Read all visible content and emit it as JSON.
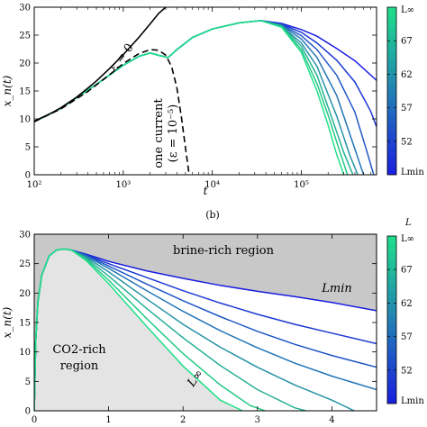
{
  "figure": {
    "panel_b_label": "(b)"
  },
  "chart_data": [
    {
      "type": "line",
      "panel": "top",
      "title": "",
      "xlabel": "t",
      "ylabel": "x_n(t)",
      "xscale": "log",
      "xlim": [
        100,
        700000
      ],
      "ylim": [
        0,
        30
      ],
      "xticks": [
        100,
        1000,
        10000,
        100000
      ],
      "xtick_labels": [
        "10²",
        "10³",
        "10⁴",
        "10⁵"
      ],
      "yticks": [
        0,
        5,
        10,
        15,
        20,
        25,
        30
      ],
      "annotations": {
        "eps0": "ε = 0",
        "one_current_1": "one current",
        "one_current_2": "(ε = 10⁻⁵)"
      },
      "reference_curves": [
        {
          "name": "ε = 0",
          "style": "solid-black",
          "x": [
            100,
            150,
            200,
            300,
            400,
            500,
            700,
            1000,
            1500,
            2000,
            2500,
            3000
          ],
          "y": [
            9.6,
            10.9,
            12.0,
            13.9,
            15.5,
            16.8,
            19.0,
            21.5,
            24.6,
            27.0,
            28.9,
            30.0
          ]
        },
        {
          "name": "one current (ε = 10⁻⁵)",
          "style": "dashed-black",
          "x": [
            100,
            200,
            400,
            700,
            1000,
            1500,
            2000,
            2500,
            3000,
            3500,
            4000,
            4500,
            5000,
            5500
          ],
          "y": [
            9.5,
            11.8,
            14.9,
            17.9,
            19.9,
            21.7,
            22.4,
            22.3,
            21.4,
            19.3,
            15.6,
            10.3,
            4.8,
            0
          ]
        }
      ],
      "series": [
        {
          "color": "#1a1ee0",
          "x": [
            100,
            200,
            500,
            1000,
            1500,
            2000,
            2600,
            3200,
            4000,
            6000,
            10000,
            20000,
            35000,
            60000,
            100000,
            150000,
            250000,
            400000,
            700000
          ],
          "y": [
            9.5,
            11.9,
            16.2,
            19.6,
            21.2,
            21.8,
            21.3,
            21.0,
            22.4,
            24.6,
            26.1,
            27.2,
            27.6,
            27.1,
            26.0,
            24.8,
            22.6,
            20.4,
            16.9
          ]
        },
        {
          "color": "#1c38d2",
          "x": [
            100,
            200,
            500,
            1000,
            1500,
            2000,
            2600,
            3200,
            4000,
            6000,
            10000,
            20000,
            35000,
            60000,
            100000,
            150000,
            250000,
            400000,
            600000,
            700000
          ],
          "y": [
            9.5,
            11.9,
            16.2,
            19.6,
            21.2,
            21.8,
            21.3,
            21.0,
            22.4,
            24.6,
            26.1,
            27.2,
            27.6,
            27.0,
            25.5,
            23.6,
            20.5,
            16.6,
            11.4,
            8.6
          ]
        },
        {
          "color": "#1f56c5",
          "x": [
            100,
            200,
            500,
            1000,
            1500,
            2000,
            2600,
            3200,
            4000,
            6000,
            10000,
            20000,
            35000,
            60000,
            100000,
            150000,
            250000,
            400000,
            550000,
            650000
          ],
          "y": [
            9.5,
            11.9,
            16.2,
            19.6,
            21.2,
            21.8,
            21.3,
            21.0,
            22.4,
            24.6,
            26.1,
            27.2,
            27.6,
            26.9,
            24.9,
            22.4,
            17.8,
            11.2,
            4.0,
            0
          ]
        },
        {
          "color": "#2274b6",
          "x": [
            100,
            200,
            500,
            1000,
            1500,
            2000,
            2600,
            3200,
            4000,
            6000,
            10000,
            20000,
            35000,
            60000,
            100000,
            150000,
            250000,
            350000,
            500000
          ],
          "y": [
            9.5,
            11.9,
            16.2,
            19.6,
            21.2,
            21.8,
            21.3,
            21.0,
            22.4,
            24.6,
            26.1,
            27.2,
            27.6,
            26.8,
            24.3,
            21.0,
            14.2,
            7.3,
            0
          ]
        },
        {
          "color": "#2592a6",
          "x": [
            100,
            200,
            500,
            1000,
            1500,
            2000,
            2600,
            3200,
            4000,
            6000,
            10000,
            20000,
            35000,
            60000,
            100000,
            150000,
            250000,
            350000,
            430000
          ],
          "y": [
            9.5,
            11.9,
            16.2,
            19.6,
            21.2,
            21.8,
            21.3,
            21.0,
            22.4,
            24.6,
            26.1,
            27.2,
            27.6,
            26.7,
            23.6,
            19.4,
            10.5,
            3.5,
            0
          ]
        },
        {
          "color": "#27b096",
          "x": [
            100,
            200,
            500,
            1000,
            1500,
            2000,
            2600,
            3200,
            4000,
            6000,
            10000,
            20000,
            35000,
            60000,
            100000,
            150000,
            220000,
            300000,
            380000
          ],
          "y": [
            9.5,
            11.9,
            16.2,
            19.6,
            21.2,
            21.8,
            21.3,
            21.0,
            22.4,
            24.6,
            26.1,
            27.2,
            27.6,
            26.6,
            23.0,
            17.8,
            10.2,
            4.0,
            0
          ]
        },
        {
          "color": "#25c885",
          "x": [
            100,
            200,
            500,
            1000,
            1500,
            2000,
            2600,
            3200,
            4000,
            6000,
            10000,
            20000,
            35000,
            60000,
            100000,
            150000,
            200000,
            260000,
            330000
          ],
          "y": [
            9.5,
            11.9,
            16.2,
            19.6,
            21.2,
            21.8,
            21.3,
            21.0,
            22.4,
            24.6,
            26.1,
            27.2,
            27.6,
            26.5,
            22.4,
            16.3,
            10.7,
            5.0,
            0
          ]
        },
        {
          "color": "#1fe08a",
          "x": [
            100,
            200,
            500,
            1000,
            1500,
            2000,
            2600,
            3200,
            4000,
            6000,
            10000,
            20000,
            35000,
            60000,
            100000,
            150000,
            200000,
            250000,
            300000
          ],
          "y": [
            9.5,
            11.9,
            16.2,
            19.6,
            21.2,
            21.8,
            21.3,
            21.0,
            22.4,
            24.6,
            26.1,
            27.2,
            27.6,
            26.4,
            21.9,
            15.0,
            8.9,
            3.6,
            0
          ]
        }
      ],
      "colorbar": {
        "top_label": "L∞",
        "bottom_label": "Lmin",
        "ticks": [
          67,
          62,
          57,
          52
        ]
      }
    },
    {
      "type": "area",
      "panel": "bottom",
      "title": "",
      "xlabel": "",
      "ylabel": "x_n(t)",
      "xlim": [
        0,
        4.6
      ],
      "ylim": [
        0,
        30
      ],
      "xticks": [
        0,
        1,
        2,
        3,
        4
      ],
      "yticks": [
        0,
        5,
        10,
        15,
        20,
        25,
        30
      ],
      "annotations": {
        "brine_region": "brine-rich region",
        "co2_region_1": "CO2-rich",
        "co2_region_2": "region",
        "lmin": "Lmin",
        "linf": "L∞"
      },
      "region_fill": {
        "brine": "#c8c8c8",
        "co2": "#e4e4e4"
      },
      "series": [
        {
          "color": "#1a1ee0",
          "x": [
            0,
            0.02,
            0.05,
            0.1,
            0.2,
            0.3,
            0.4,
            0.5,
            0.7,
            1.0,
            1.5,
            2.0,
            2.5,
            3.0,
            3.5,
            4.0,
            4.6
          ],
          "y": [
            0,
            12,
            18.5,
            23.0,
            26.3,
            27.3,
            27.5,
            27.3,
            26.6,
            25.4,
            23.8,
            22.5,
            21.3,
            20.3,
            19.4,
            18.4,
            17.0
          ]
        },
        {
          "color": "#1c38d2",
          "x": [
            0,
            0.02,
            0.05,
            0.1,
            0.2,
            0.3,
            0.4,
            0.5,
            0.7,
            1.0,
            1.5,
            2.0,
            2.5,
            3.0,
            3.5,
            4.0,
            4.6
          ],
          "y": [
            0,
            12,
            18.5,
            23.0,
            26.3,
            27.3,
            27.5,
            27.3,
            26.5,
            25.0,
            22.7,
            20.4,
            18.3,
            16.4,
            14.7,
            13.2,
            11.4
          ]
        },
        {
          "color": "#1f56c5",
          "x": [
            0,
            0.02,
            0.05,
            0.1,
            0.2,
            0.3,
            0.4,
            0.5,
            0.7,
            1.0,
            1.5,
            2.0,
            2.5,
            3.0,
            3.5,
            4.0,
            4.6
          ],
          "y": [
            0,
            12,
            18.5,
            23.0,
            26.3,
            27.3,
            27.5,
            27.3,
            26.4,
            24.6,
            21.6,
            18.7,
            16.0,
            13.5,
            11.3,
            9.4,
            7.4
          ]
        },
        {
          "color": "#2274b6",
          "x": [
            0,
            0.02,
            0.05,
            0.1,
            0.2,
            0.3,
            0.4,
            0.5,
            0.7,
            1.0,
            1.5,
            2.0,
            2.5,
            3.0,
            3.5,
            4.0,
            4.6
          ],
          "y": [
            0,
            12,
            18.5,
            23.0,
            26.3,
            27.3,
            27.5,
            27.3,
            26.3,
            24.2,
            20.5,
            16.9,
            13.6,
            10.7,
            8.1,
            5.9,
            3.6
          ]
        },
        {
          "color": "#2592a6",
          "x": [
            0,
            0.02,
            0.05,
            0.1,
            0.2,
            0.3,
            0.4,
            0.5,
            0.7,
            1.0,
            1.5,
            2.0,
            2.5,
            3.0,
            3.5,
            4.0,
            4.3
          ],
          "y": [
            0,
            12,
            18.5,
            23.0,
            26.3,
            27.3,
            27.5,
            27.3,
            26.1,
            23.6,
            19.1,
            14.7,
            10.8,
            7.4,
            4.4,
            1.8,
            0
          ]
        },
        {
          "color": "#27b096",
          "x": [
            0,
            0.02,
            0.05,
            0.1,
            0.2,
            0.3,
            0.4,
            0.5,
            0.7,
            1.0,
            1.5,
            2.0,
            2.5,
            3.0,
            3.5,
            3.65
          ],
          "y": [
            0,
            12,
            18.5,
            23.0,
            26.3,
            27.3,
            27.5,
            27.3,
            25.9,
            22.9,
            17.5,
            12.4,
            7.7,
            3.6,
            0.5,
            0
          ]
        },
        {
          "color": "#25c885",
          "x": [
            0,
            0.02,
            0.05,
            0.1,
            0.2,
            0.3,
            0.4,
            0.5,
            0.7,
            1.0,
            1.5,
            2.0,
            2.5,
            2.9,
            3.1
          ],
          "y": [
            0,
            12,
            18.5,
            23.0,
            26.3,
            27.3,
            27.5,
            27.3,
            25.7,
            22.2,
            15.8,
            9.7,
            4.4,
            0.9,
            0
          ]
        },
        {
          "color": "#1fe08a",
          "x": [
            0,
            0.02,
            0.05,
            0.1,
            0.2,
            0.3,
            0.4,
            0.5,
            0.7,
            1.0,
            1.5,
            2.0,
            2.5,
            2.8
          ],
          "y": [
            0,
            12,
            18.5,
            23.0,
            26.3,
            27.3,
            27.5,
            27.3,
            25.5,
            21.6,
            14.5,
            7.6,
            1.8,
            0
          ]
        }
      ],
      "colorbar": {
        "title": "L",
        "top_label": "L∞",
        "bottom_label": "Lmin",
        "ticks": [
          67,
          62,
          57,
          52
        ]
      }
    }
  ]
}
